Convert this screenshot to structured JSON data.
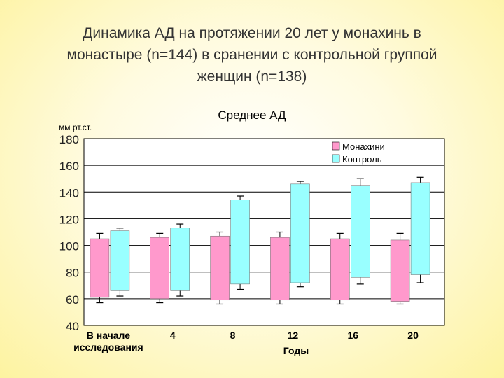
{
  "slide": {
    "title_lines": [
      "Динамика АД на протяжении 20 лет у монахинь в",
      "монастыре (n=144)  в сранении с контрольной группой",
      "женщин (n=138)"
    ]
  },
  "chart_data": {
    "type": "bar",
    "subtype": "floating-range with error bars",
    "title": "Среднее АД",
    "ylabel": "мм рт.ст.",
    "xlabel": "Годы",
    "ylim": [
      40,
      180
    ],
    "yticks": [
      180,
      160,
      140,
      120,
      100,
      80,
      60,
      40
    ],
    "categories": [
      [
        "В начале",
        "исследования"
      ],
      [
        "4"
      ],
      [
        "8"
      ],
      [
        "12"
      ],
      [
        "16"
      ],
      [
        "20"
      ]
    ],
    "legend": {
      "position": "top-right"
    },
    "series": [
      {
        "name": "Монахини",
        "color": "#ff99cc",
        "low": [
          61,
          60,
          59,
          59,
          59,
          58
        ],
        "high": [
          105,
          106,
          107,
          106,
          105,
          104
        ],
        "err_low": [
          57,
          57,
          56,
          56,
          56,
          56
        ],
        "err_high": [
          109,
          109,
          110,
          110,
          109,
          109
        ]
      },
      {
        "name": "Контроль",
        "color": "#99ffff",
        "low": [
          66,
          66,
          71,
          72,
          76,
          78
        ],
        "high": [
          111,
          113,
          134,
          146,
          145,
          147
        ],
        "err_low": [
          62,
          62,
          67,
          69,
          71,
          72
        ],
        "err_high": [
          113,
          116,
          137,
          148,
          150,
          151
        ]
      }
    ]
  }
}
